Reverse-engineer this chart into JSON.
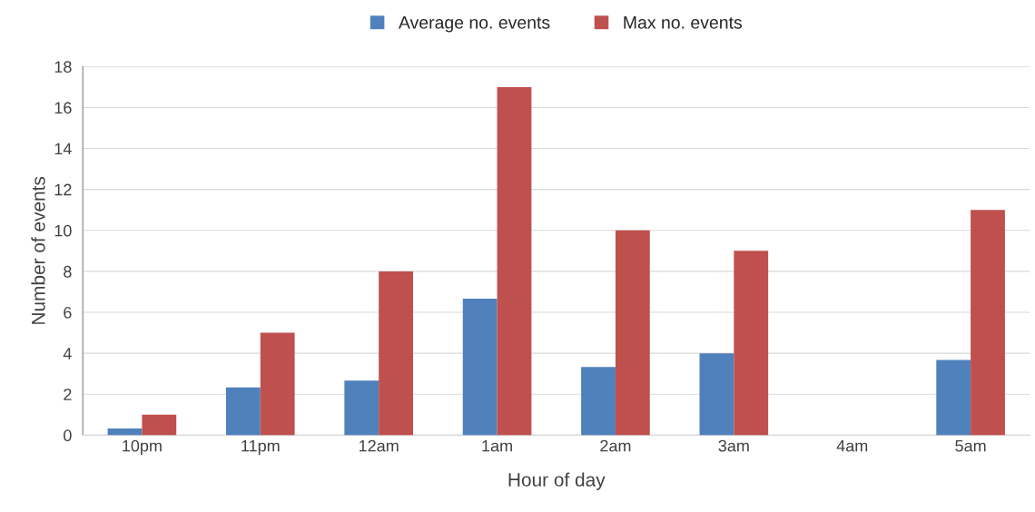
{
  "chart_data": {
    "type": "bar",
    "xlabel": "Hour of day",
    "ylabel": "Number of events",
    "categories": [
      "10pm",
      "11pm",
      "12am",
      "1am",
      "2am",
      "3am",
      "4am",
      "5am"
    ],
    "series": [
      {
        "name": "Average no. events",
        "color": "#4f81bd",
        "values": [
          0.33,
          2.33,
          2.67,
          6.67,
          3.33,
          4,
          0,
          3.67
        ]
      },
      {
        "name": "Max no. events",
        "color": "#c0504d",
        "values": [
          1,
          5,
          8,
          17,
          10,
          9,
          0,
          11
        ]
      }
    ],
    "ylim": [
      0,
      18
    ],
    "yticks": [
      0,
      2,
      4,
      6,
      8,
      10,
      12,
      14,
      16,
      18
    ],
    "grid": "y",
    "legend": "top"
  }
}
